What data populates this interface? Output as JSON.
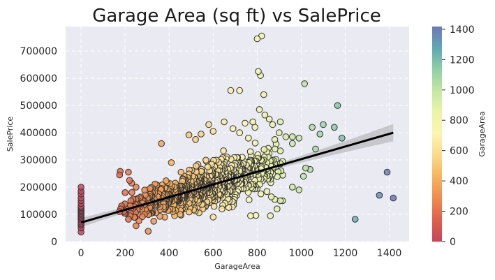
{
  "chart_data": {
    "type": "scatter",
    "title": "Garage Area (sq ft) vs SalePrice",
    "xlabel": "GarageArea",
    "ylabel": "SalePrice",
    "xlim": [
      -70,
      1490
    ],
    "ylim": [
      0,
      790000
    ],
    "x_ticks": [
      0,
      200,
      400,
      600,
      800,
      1000,
      1200,
      1400
    ],
    "y_ticks": [
      0,
      100000,
      200000,
      300000,
      400000,
      500000,
      600000,
      700000
    ],
    "grid": true,
    "background": "#eaeaf2",
    "colormap": "Spectral",
    "colorbar": {
      "label": "GarageArea",
      "range": [
        0,
        1418
      ],
      "ticks": [
        0,
        200,
        400,
        600,
        800,
        1000,
        1200,
        1400
      ]
    },
    "regression": {
      "x": [
        0,
        1418
      ],
      "y": [
        70000,
        400000
      ],
      "color": "#000000",
      "ci_band": true
    },
    "cloud": {
      "seed": 7,
      "count": 800,
      "x_range": [
        160,
        950
      ],
      "price_at_zero": 70000,
      "slope": 235,
      "price_floor": 40000
    },
    "points": [
      [
        0,
        35000
      ],
      [
        0,
        50000
      ],
      [
        0,
        60000
      ],
      [
        0,
        65000
      ],
      [
        0,
        72000
      ],
      [
        0,
        80000
      ],
      [
        0,
        85000
      ],
      [
        0,
        90000
      ],
      [
        0,
        95000
      ],
      [
        0,
        100000
      ],
      [
        0,
        105000
      ],
      [
        0,
        110000
      ],
      [
        0,
        115000
      ],
      [
        0,
        120000
      ],
      [
        0,
        125000
      ],
      [
        0,
        130000
      ],
      [
        0,
        140000
      ],
      [
        0,
        150000
      ],
      [
        0,
        160000
      ],
      [
        0,
        175000
      ],
      [
        0,
        185000
      ],
      [
        0,
        200000
      ],
      [
        175,
        245000
      ],
      [
        178,
        258000
      ],
      [
        215,
        255000
      ],
      [
        220,
        225000
      ],
      [
        230,
        215000
      ],
      [
        305,
        38000
      ],
      [
        250,
        58000
      ],
      [
        215,
        82000
      ],
      [
        365,
        360000
      ],
      [
        410,
        290000
      ],
      [
        490,
        392000
      ],
      [
        545,
        395000
      ],
      [
        580,
        430000
      ],
      [
        520,
        375000
      ],
      [
        600,
        405000
      ],
      [
        650,
        440000
      ],
      [
        690,
        415000
      ],
      [
        720,
        400000
      ],
      [
        745,
        435000
      ],
      [
        760,
        380000
      ],
      [
        780,
        440000
      ],
      [
        790,
        420000
      ],
      [
        680,
        555000
      ],
      [
        720,
        555000
      ],
      [
        800,
        745000
      ],
      [
        820,
        755000
      ],
      [
        805,
        625000
      ],
      [
        815,
        610000
      ],
      [
        830,
        540000
      ],
      [
        810,
        485000
      ],
      [
        835,
        465000
      ],
      [
        855,
        450000
      ],
      [
        870,
        430000
      ],
      [
        905,
        440000
      ],
      [
        900,
        400000
      ],
      [
        880,
        375000
      ],
      [
        930,
        385000
      ],
      [
        960,
        385000
      ],
      [
        990,
        380000
      ],
      [
        960,
        360000
      ],
      [
        1015,
        580000
      ],
      [
        1050,
        420000
      ],
      [
        1085,
        395000
      ],
      [
        1100,
        430000
      ],
      [
        1065,
        340000
      ],
      [
        1040,
        265000
      ],
      [
        1020,
        270000
      ],
      [
        1010,
        240000
      ],
      [
        960,
        200000
      ],
      [
        990,
        190000
      ],
      [
        880,
        155000
      ],
      [
        890,
        120000
      ],
      [
        905,
        150000
      ],
      [
        915,
        150000
      ],
      [
        860,
        95000
      ],
      [
        1165,
        500000
      ],
      [
        1150,
        420000
      ],
      [
        1185,
        380000
      ],
      [
        1245,
        82000
      ],
      [
        1355,
        170000
      ],
      [
        1390,
        255000
      ],
      [
        1418,
        160000
      ],
      [
        760,
        255000
      ],
      [
        770,
        95000
      ],
      [
        600,
        90000
      ],
      [
        640,
        120000
      ],
      [
        450,
        100000
      ],
      [
        380,
        90000
      ],
      [
        330,
        75000
      ],
      [
        180,
        120000
      ],
      [
        200,
        180000
      ],
      [
        250,
        200000
      ],
      [
        280,
        150000
      ]
    ]
  }
}
